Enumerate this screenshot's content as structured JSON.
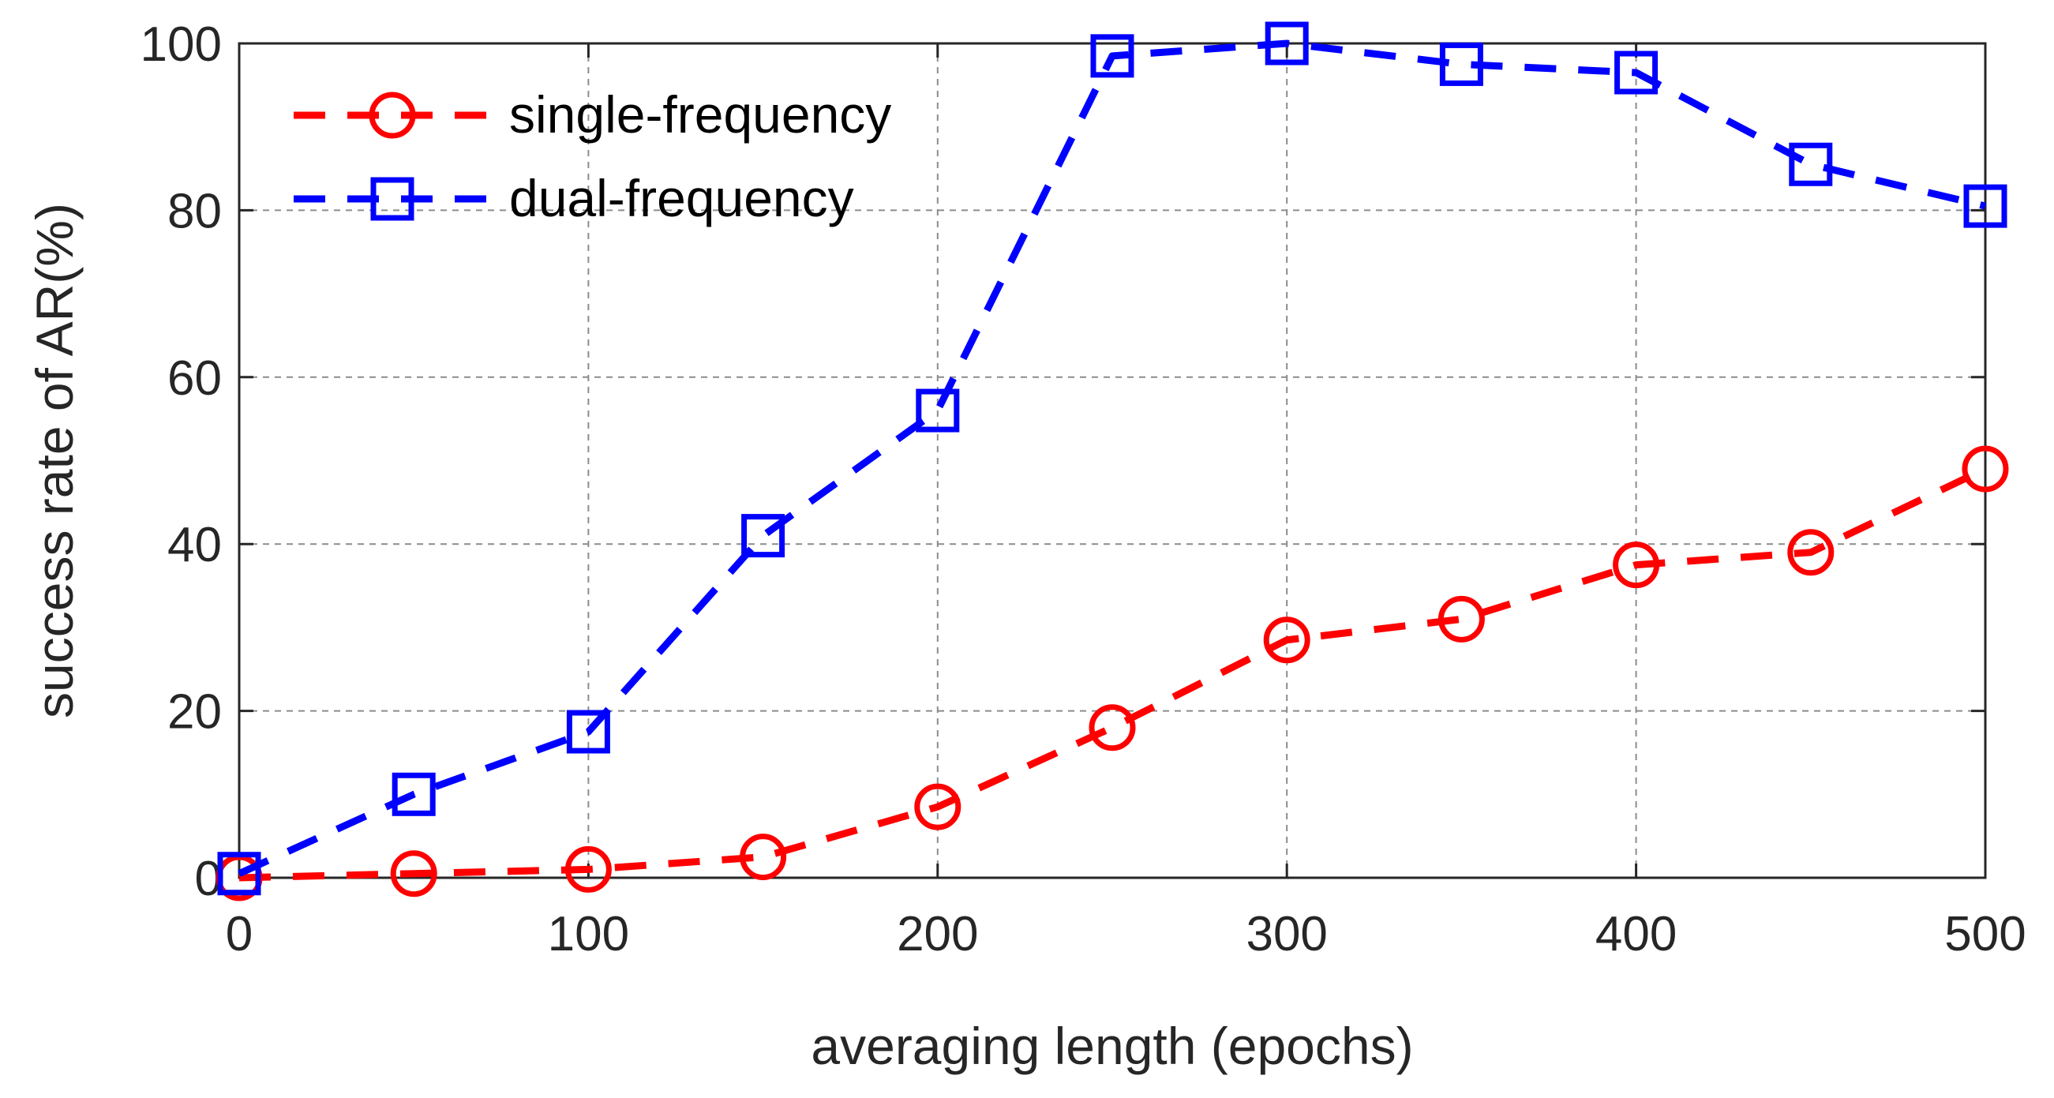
{
  "chart_data": {
    "type": "line",
    "title": "",
    "xlabel": "averaging length (epochs)",
    "ylabel": "success rate of AR(%)",
    "xlim": [
      0,
      500
    ],
    "ylim": [
      0,
      100
    ],
    "xticks": [
      0,
      100,
      200,
      300,
      400,
      500
    ],
    "yticks": [
      0,
      20,
      40,
      60,
      80,
      100
    ],
    "grid": true,
    "legend_position": "top-left",
    "x": [
      0,
      50,
      100,
      150,
      200,
      250,
      300,
      350,
      400,
      450,
      500
    ],
    "series": [
      {
        "name": "single-frequency",
        "color": "#ff0000",
        "marker": "circle",
        "linestyle": "dashed",
        "values": [
          0,
          0.5,
          1,
          2.5,
          8.5,
          18,
          28.5,
          31,
          37.5,
          39,
          49
        ]
      },
      {
        "name": "dual-frequency",
        "color": "#0000ff",
        "marker": "square",
        "linestyle": "dashed",
        "values": [
          0.5,
          10,
          17.5,
          41,
          56,
          98.5,
          100,
          97.5,
          96.5,
          85.5,
          80.5
        ]
      }
    ]
  }
}
